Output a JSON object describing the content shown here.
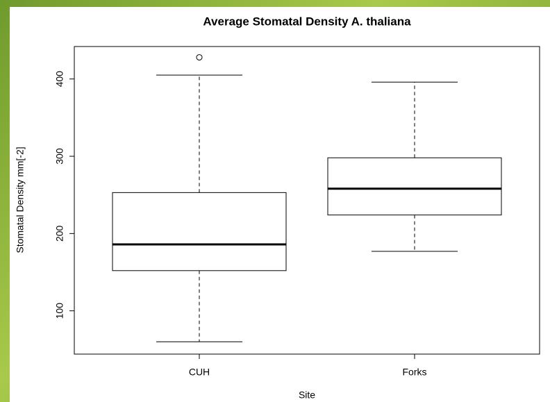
{
  "chart_data": {
    "type": "box",
    "title": "Average Stomatal Density A. thaliana",
    "x_label": "Site",
    "y_label": "Stomatal Density mm[-2]",
    "categories": [
      "CUH",
      "Forks"
    ],
    "boxes": [
      {
        "min": 60,
        "q1": 152,
        "median": 186,
        "q3": 253,
        "max": 405,
        "outliers": [
          428
        ]
      },
      {
        "min": 177,
        "q1": 224,
        "median": 258,
        "q3": 298,
        "max": 396,
        "outliers": []
      }
    ],
    "ylim": [
      44,
      442
    ],
    "yticks": [
      100,
      200,
      300,
      400
    ]
  }
}
